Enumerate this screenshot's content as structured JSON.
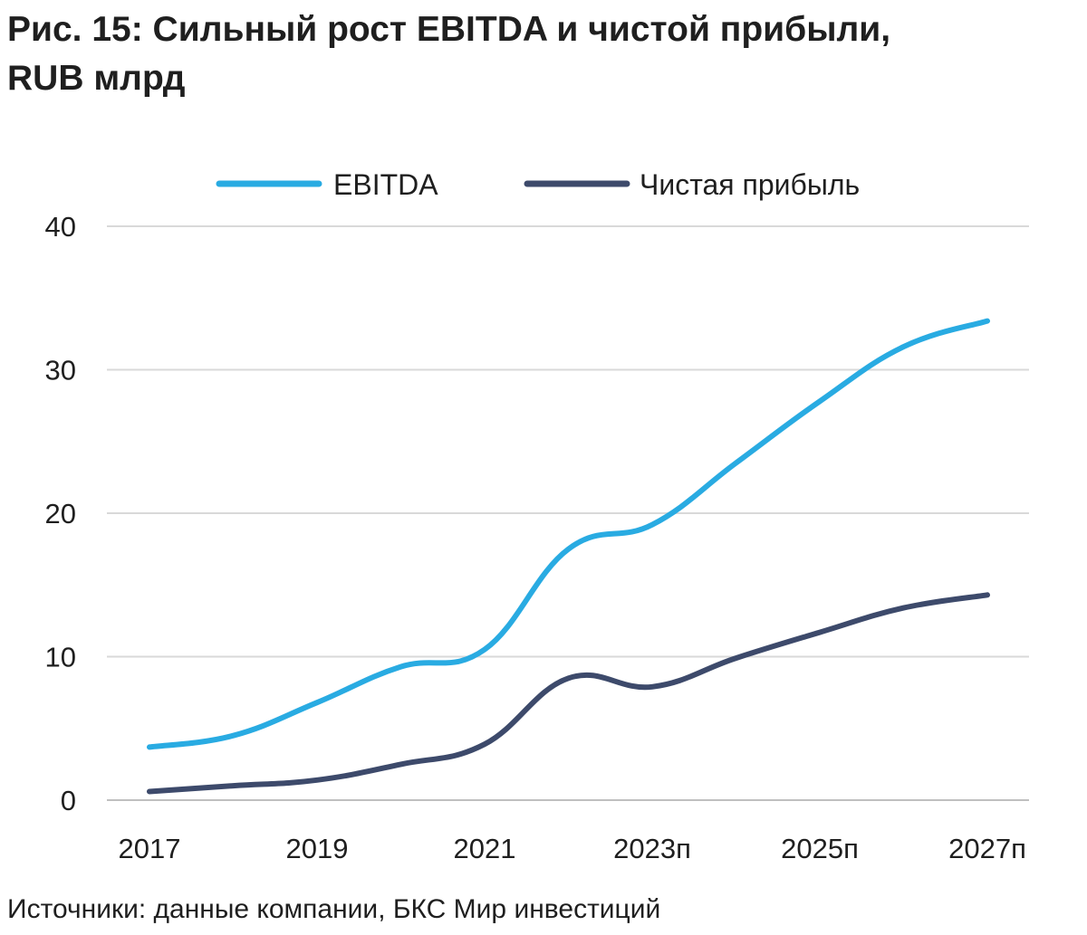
{
  "header": {
    "title_line1": "Рис. 15: Сильный рост EBITDA и чистой прибыли,",
    "title_line2": "RUB млрд"
  },
  "footer": {
    "source": "Источники: данные компании, БКС Мир инвестиций"
  },
  "colors": {
    "ebitda": "#29abe2",
    "net_income": "#3d4a6b",
    "grid": "#d9d9d9",
    "axis": "#bfbfbf",
    "text": "#1f1f1f"
  },
  "chart_data": {
    "type": "line",
    "title": "Рис. 15: Сильный рост EBITDA и чистой прибыли, RUB млрд",
    "xlabel": "",
    "ylabel": "",
    "x": [
      "2017",
      "2018",
      "2019",
      "2020",
      "2021",
      "2022",
      "2023п",
      "2024п",
      "2025п",
      "2026п",
      "2027п"
    ],
    "x_tick_labels": [
      "2017",
      "2019",
      "2021",
      "2023п",
      "2025п",
      "2027п"
    ],
    "y_ticks": [
      0,
      10,
      20,
      30,
      40
    ],
    "ylim": [
      0,
      40
    ],
    "grid": true,
    "legend_position": "top-center",
    "series": [
      {
        "name": "EBITDA",
        "values": [
          3.7,
          4.5,
          6.8,
          9.3,
          10.5,
          17.5,
          19.2,
          23.5,
          27.8,
          31.6,
          33.4
        ]
      },
      {
        "name": "Чистая прибыль",
        "values": [
          0.6,
          1.0,
          1.4,
          2.5,
          3.9,
          8.5,
          7.9,
          9.9,
          11.7,
          13.4,
          14.3
        ]
      }
    ]
  }
}
